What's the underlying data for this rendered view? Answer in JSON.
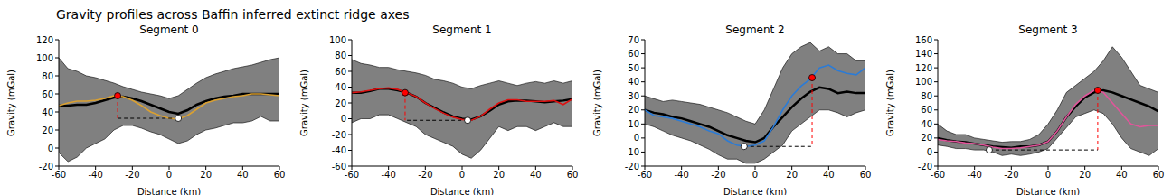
{
  "title": "Gravity profiles across Baffin inferred extinct ridge axes",
  "chart_data": [
    {
      "type": "line",
      "title": "Segment 0",
      "x_label": "Distance (km)",
      "y_label": "Gravity (mGal)",
      "xlim": [
        -60,
        60
      ],
      "xticks": [
        -60,
        -40,
        -20,
        0,
        20,
        40,
        60
      ],
      "ylim": [
        -20,
        120
      ],
      "yticks": [
        -20,
        0,
        20,
        40,
        60,
        80,
        100,
        120
      ],
      "grid": false,
      "x": [
        -60,
        -55,
        -50,
        -45,
        -40,
        -35,
        -30,
        -25,
        -20,
        -15,
        -10,
        -5,
        0,
        5,
        10,
        15,
        20,
        25,
        30,
        35,
        40,
        45,
        50,
        55,
        60
      ],
      "series": [
        {
          "type": "band",
          "color": "#808080",
          "values": [
            [
              -5,
              100
            ],
            [
              -15,
              88
            ],
            [
              -10,
              85
            ],
            [
              0,
              80
            ],
            [
              5,
              78
            ],
            [
              10,
              75
            ],
            [
              20,
              72
            ],
            [
              25,
              68
            ],
            [
              25,
              65
            ],
            [
              22,
              62
            ],
            [
              18,
              60
            ],
            [
              15,
              58
            ],
            [
              10,
              55
            ],
            [
              5,
              58
            ],
            [
              8,
              65
            ],
            [
              15,
              72
            ],
            [
              20,
              78
            ],
            [
              22,
              82
            ],
            [
              25,
              85
            ],
            [
              28,
              88
            ],
            [
              28,
              90
            ],
            [
              30,
              92
            ],
            [
              35,
              95
            ],
            [
              30,
              98
            ],
            [
              30,
              100
            ]
          ]
        },
        {
          "type": "line",
          "color": "#000000",
          "values": [
            47,
            47,
            48,
            48,
            50,
            53,
            56,
            57,
            55,
            52,
            48,
            44,
            40,
            38,
            42,
            48,
            52,
            55,
            57,
            58,
            60,
            60,
            60,
            60,
            60
          ]
        },
        {
          "type": "line",
          "color": "#daa030",
          "values": [
            47,
            50,
            52,
            52,
            53,
            55,
            58,
            57,
            53,
            47,
            40,
            36,
            33,
            32,
            36,
            43,
            50,
            53,
            55,
            57,
            58,
            60,
            60,
            59,
            58
          ]
        }
      ],
      "markers": [
        {
          "x": -28,
          "y": 58,
          "color": "#ff0000",
          "marker": "circle"
        },
        {
          "x": 5,
          "y": 33,
          "color": "#ffffff",
          "marker": "circle"
        }
      ]
    },
    {
      "type": "line",
      "title": "Segment 1",
      "x_label": "Distance (km)",
      "y_label": "Gravity (mGal)",
      "xlim": [
        -60,
        60
      ],
      "xticks": [
        -60,
        -40,
        -20,
        0,
        20,
        40,
        60
      ],
      "ylim": [
        -60,
        100
      ],
      "yticks": [
        -60,
        -40,
        -20,
        0,
        20,
        40,
        60,
        80,
        100
      ],
      "grid": false,
      "x": [
        -60,
        -55,
        -50,
        -45,
        -40,
        -35,
        -30,
        -25,
        -20,
        -15,
        -10,
        -5,
        0,
        5,
        10,
        15,
        20,
        25,
        30,
        35,
        40,
        45,
        50,
        55,
        60
      ],
      "series": [
        {
          "type": "band",
          "color": "#808080",
          "values": [
            [
              -5,
              75
            ],
            [
              0,
              70
            ],
            [
              0,
              68
            ],
            [
              5,
              65
            ],
            [
              5,
              65
            ],
            [
              0,
              62
            ],
            [
              -5,
              60
            ],
            [
              -10,
              58
            ],
            [
              -20,
              55
            ],
            [
              -25,
              50
            ],
            [
              -30,
              48
            ],
            [
              -35,
              45
            ],
            [
              -45,
              40
            ],
            [
              -50,
              38
            ],
            [
              -40,
              42
            ],
            [
              -25,
              45
            ],
            [
              -10,
              48
            ],
            [
              -15,
              45
            ],
            [
              -10,
              42
            ],
            [
              -10,
              45
            ],
            [
              -15,
              47
            ],
            [
              -10,
              45
            ],
            [
              -5,
              48
            ],
            [
              -10,
              45
            ],
            [
              -10,
              48
            ]
          ]
        },
        {
          "type": "line",
          "color": "#000000",
          "values": [
            33,
            33,
            35,
            38,
            38,
            36,
            33,
            28,
            20,
            14,
            8,
            3,
            0,
            -1,
            3,
            10,
            18,
            22,
            23,
            23,
            22,
            21,
            22,
            23,
            25
          ]
        },
        {
          "type": "line",
          "color": "#dd1111",
          "values": [
            33,
            34,
            36,
            38,
            39,
            37,
            33,
            28,
            20,
            13,
            7,
            2,
            -1,
            -2,
            3,
            12,
            20,
            24,
            24,
            22,
            22,
            22,
            23,
            18,
            25
          ]
        }
      ],
      "markers": [
        {
          "x": -31,
          "y": 33,
          "color": "#ff0000",
          "marker": "circle"
        },
        {
          "x": 3,
          "y": -2,
          "color": "#ffffff",
          "marker": "circle"
        }
      ]
    },
    {
      "type": "line",
      "title": "Segment 2",
      "x_label": "Distance (km)",
      "y_label": "Gravity (mGal)",
      "xlim": [
        -60,
        60
      ],
      "xticks": [
        -60,
        -40,
        -20,
        0,
        20,
        40,
        60
      ],
      "ylim": [
        -20,
        70
      ],
      "yticks": [
        -20,
        -10,
        0,
        10,
        20,
        30,
        40,
        50,
        60,
        70
      ],
      "grid": false,
      "x": [
        -60,
        -55,
        -50,
        -45,
        -40,
        -35,
        -30,
        -25,
        -20,
        -15,
        -10,
        -5,
        0,
        5,
        10,
        15,
        20,
        25,
        30,
        35,
        40,
        45,
        50,
        55,
        60
      ],
      "series": [
        {
          "type": "band",
          "color": "#808080",
          "values": [
            [
              10,
              30
            ],
            [
              8,
              28
            ],
            [
              5,
              26
            ],
            [
              2,
              27
            ],
            [
              0,
              26
            ],
            [
              -2,
              25
            ],
            [
              -5,
              24
            ],
            [
              -8,
              22
            ],
            [
              -12,
              20
            ],
            [
              -15,
              18
            ],
            [
              -15,
              15
            ],
            [
              -18,
              12
            ],
            [
              -18,
              10
            ],
            [
              -15,
              20
            ],
            [
              -10,
              35
            ],
            [
              -5,
              50
            ],
            [
              5,
              60
            ],
            [
              10,
              65
            ],
            [
              15,
              68
            ],
            [
              20,
              62
            ],
            [
              20,
              65
            ],
            [
              18,
              60
            ],
            [
              15,
              60
            ],
            [
              18,
              55
            ],
            [
              20,
              55
            ]
          ]
        },
        {
          "type": "line",
          "color": "#000000",
          "values": [
            20,
            18,
            17,
            15,
            14,
            12,
            10,
            8,
            5,
            2,
            0,
            -2,
            -3,
            0,
            8,
            15,
            22,
            28,
            33,
            36,
            35,
            32,
            33,
            32,
            32
          ]
        },
        {
          "type": "line",
          "color": "#2b7bd6",
          "values": [
            20,
            16,
            15,
            14,
            12,
            10,
            8,
            5,
            3,
            -2,
            -5,
            -6,
            -5,
            -2,
            8,
            20,
            30,
            37,
            42,
            50,
            52,
            48,
            46,
            45,
            50
          ]
        }
      ],
      "markers": [
        {
          "x": 31,
          "y": 43,
          "color": "#ff0000",
          "marker": "circle"
        },
        {
          "x": -6,
          "y": -6,
          "color": "#ffffff",
          "marker": "circle"
        }
      ]
    },
    {
      "type": "line",
      "title": "Segment 3",
      "x_label": "Distance (km)",
      "y_label": "Gravity (mGal)",
      "xlim": [
        -60,
        60
      ],
      "xticks": [
        -60,
        -40,
        -20,
        0,
        20,
        40,
        60
      ],
      "ylim": [
        -20,
        160
      ],
      "yticks": [
        -20,
        0,
        20,
        40,
        60,
        80,
        100,
        120,
        140,
        160
      ],
      "grid": false,
      "x": [
        -60,
        -55,
        -50,
        -45,
        -40,
        -35,
        -30,
        -25,
        -20,
        -15,
        -10,
        -5,
        0,
        5,
        10,
        15,
        20,
        25,
        30,
        35,
        40,
        45,
        50,
        55,
        60
      ],
      "series": [
        {
          "type": "band",
          "color": "#808080",
          "values": [
            [
              10,
              40
            ],
            [
              8,
              30
            ],
            [
              5,
              25
            ],
            [
              5,
              25
            ],
            [
              3,
              20
            ],
            [
              3,
              18
            ],
            [
              0,
              16
            ],
            [
              -5,
              14
            ],
            [
              -3,
              15
            ],
            [
              -5,
              15
            ],
            [
              -3,
              18
            ],
            [
              0,
              25
            ],
            [
              5,
              40
            ],
            [
              20,
              60
            ],
            [
              35,
              85
            ],
            [
              50,
              95
            ],
            [
              55,
              105
            ],
            [
              60,
              115
            ],
            [
              55,
              130
            ],
            [
              40,
              150
            ],
            [
              20,
              135
            ],
            [
              5,
              115
            ],
            [
              0,
              95
            ],
            [
              -5,
              90
            ],
            [
              5,
              85
            ]
          ]
        },
        {
          "type": "line",
          "color": "#000000",
          "values": [
            20,
            17,
            15,
            14,
            12,
            10,
            8,
            7,
            6,
            8,
            8,
            10,
            15,
            30,
            50,
            65,
            78,
            85,
            88,
            85,
            80,
            75,
            70,
            65,
            58
          ]
        },
        {
          "type": "line",
          "color": "#e0559a",
          "values": [
            18,
            16,
            15,
            13,
            12,
            10,
            7,
            5,
            5,
            6,
            8,
            10,
            15,
            30,
            50,
            68,
            80,
            88,
            85,
            70,
            55,
            40,
            36,
            38,
            38
          ]
        }
      ],
      "markers": [
        {
          "x": 27,
          "y": 88,
          "color": "#ff0000",
          "marker": "circle"
        },
        {
          "x": -32,
          "y": 3,
          "color": "#ffffff",
          "marker": "circle"
        }
      ]
    }
  ]
}
